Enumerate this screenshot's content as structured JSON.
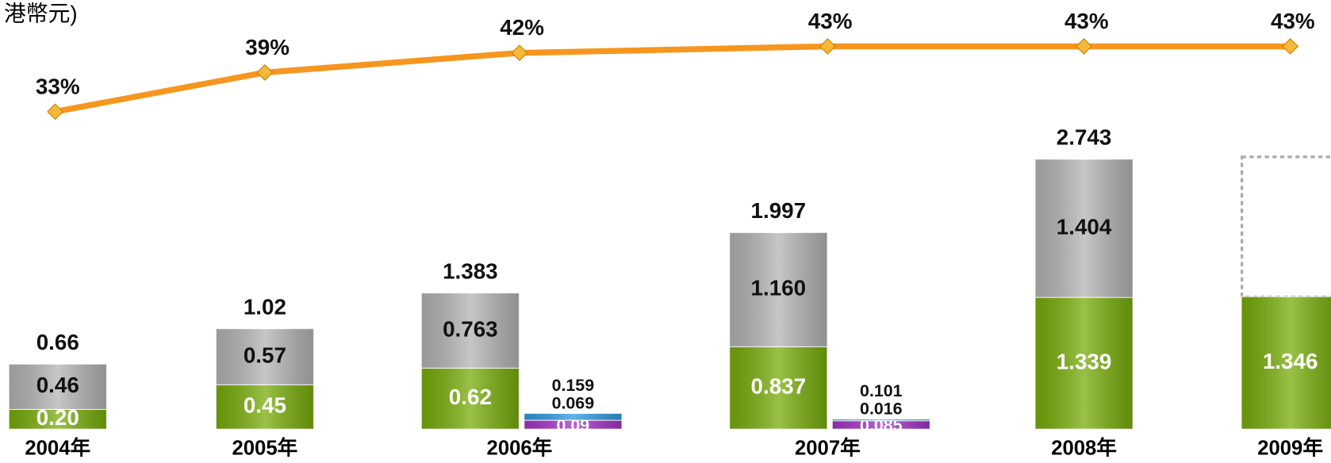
{
  "chart_data": {
    "type": "bar",
    "title": "港幣元)",
    "categories": [
      "2004年",
      "2005年",
      "2006年",
      "2007年",
      "2008年",
      "2009年"
    ],
    "ylim": [
      0,
      4.362
    ],
    "y2lim": [
      -15.6,
      50.1
    ],
    "series": [
      {
        "stack": "main",
        "color": "#78ad0a",
        "values": [
          0.2,
          0.45,
          0.62,
          0.837,
          1.339,
          1.346
        ],
        "value_labels": [
          "0.20",
          "0.45",
          "0.62",
          "0.837",
          "1.339",
          "1.346"
        ]
      },
      {
        "stack": "main",
        "color": "#b4b4b4",
        "values": [
          0.46,
          0.57,
          0.763,
          1.16,
          1.404,
          null
        ],
        "value_labels": [
          "0.46",
          "0.57",
          "0.763",
          "1.160",
          "1.404",
          null
        ]
      },
      {
        "stack": "small",
        "color": "#a632c8",
        "values": [
          null,
          null,
          0.09,
          0.085,
          null,
          null
        ],
        "value_labels": [
          null,
          null,
          "0.09",
          "0.085",
          null,
          null
        ]
      },
      {
        "stack": "small",
        "color": "#2f9be0",
        "values": [
          null,
          null,
          0.069,
          0.016,
          null,
          null
        ]
      },
      {
        "type": "line",
        "axis": "y2",
        "color": "#f7961e",
        "values": [
          33,
          39,
          42,
          43,
          43,
          43
        ],
        "value_labels": [
          "33%",
          "39%",
          "42%",
          "43%",
          "43%",
          "43%"
        ]
      }
    ],
    "totals": {
      "main": [
        0.66,
        1.02,
        1.383,
        1.997,
        2.743,
        null
      ],
      "small": [
        null,
        null,
        0.159,
        0.101,
        null,
        null
      ]
    }
  }
}
